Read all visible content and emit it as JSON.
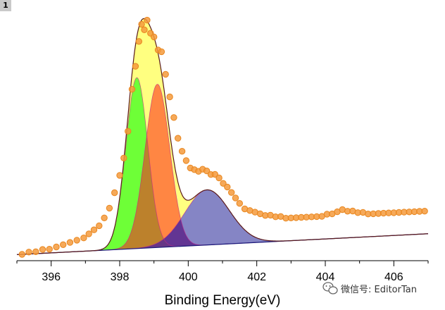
{
  "layer_badge": "1",
  "watermark": "微信号: EditorTan",
  "icons": {
    "watermark": "wechat-icon"
  },
  "chart_data": {
    "type": "area",
    "xlabel": "Binding Energy(eV)",
    "ylabel": "",
    "xlim": [
      395,
      407
    ],
    "ylim": [
      0,
      1.18
    ],
    "x_ticks": [
      396,
      398,
      400,
      402,
      404,
      406
    ],
    "x_tick_labels": [
      "396",
      "398",
      "400",
      "402",
      "404",
      "406"
    ],
    "baseline": {
      "x": [
        395,
        407
      ],
      "y": [
        -0.02,
        0.09
      ]
    },
    "components": [
      {
        "center": 398.5,
        "height": 0.9,
        "sigma": 0.32,
        "color": "#66ff33",
        "shadow": "#b5812a"
      },
      {
        "center": 399.1,
        "height": 0.86,
        "sigma": 0.36,
        "color": "#ff7f3f",
        "shadow": "#b5812a"
      },
      {
        "center": 400.55,
        "height": 0.29,
        "sigma": 0.65,
        "color": "#7e7ec8",
        "shadow": "#5e2e8e"
      }
    ],
    "envelope_color": "#ffff80",
    "envelope_line_color": "#5a1a1a",
    "data_points": [
      [
        395.15,
        0.0
      ],
      [
        395.35,
        0.01
      ],
      [
        395.55,
        0.01
      ],
      [
        395.75,
        0.02
      ],
      [
        395.95,
        0.02
      ],
      [
        396.15,
        0.03
      ],
      [
        396.35,
        0.04
      ],
      [
        396.55,
        0.05
      ],
      [
        396.75,
        0.06
      ],
      [
        396.95,
        0.07
      ],
      [
        397.1,
        0.09
      ],
      [
        397.25,
        0.11
      ],
      [
        397.4,
        0.13
      ],
      [
        397.55,
        0.17
      ],
      [
        397.7,
        0.22
      ],
      [
        397.85,
        0.3
      ],
      [
        398.0,
        0.39
      ],
      [
        398.12,
        0.48
      ],
      [
        398.24,
        0.62
      ],
      [
        398.36,
        0.84
      ],
      [
        398.46,
        0.96
      ],
      [
        398.56,
        1.09
      ],
      [
        398.64,
        1.18
      ],
      [
        398.72,
        1.15
      ],
      [
        398.8,
        1.2
      ],
      [
        398.9,
        1.13
      ],
      [
        399.0,
        1.11
      ],
      [
        399.12,
        1.04
      ],
      [
        399.22,
        1.03
      ],
      [
        399.34,
        0.91
      ],
      [
        399.46,
        0.79
      ],
      [
        399.58,
        0.68
      ],
      [
        399.7,
        0.57
      ],
      [
        399.82,
        0.5
      ],
      [
        399.94,
        0.45
      ],
      [
        400.06,
        0.41
      ],
      [
        400.18,
        0.4
      ],
      [
        400.3,
        0.39
      ],
      [
        400.42,
        0.4
      ],
      [
        400.54,
        0.39
      ],
      [
        400.66,
        0.37
      ],
      [
        400.78,
        0.37
      ],
      [
        400.9,
        0.35
      ],
      [
        401.02,
        0.32
      ],
      [
        401.14,
        0.3
      ],
      [
        401.26,
        0.27
      ],
      [
        401.38,
        0.24
      ],
      [
        401.5,
        0.21
      ],
      [
        401.65,
        0.18
      ],
      [
        401.8,
        0.17
      ],
      [
        401.95,
        0.16
      ],
      [
        402.1,
        0.15
      ],
      [
        402.25,
        0.14
      ],
      [
        402.4,
        0.14
      ],
      [
        402.55,
        0.13
      ],
      [
        402.7,
        0.13
      ],
      [
        402.85,
        0.12
      ],
      [
        403.0,
        0.12
      ],
      [
        403.15,
        0.12
      ],
      [
        403.3,
        0.12
      ],
      [
        403.45,
        0.12
      ],
      [
        403.6,
        0.12
      ],
      [
        403.75,
        0.12
      ],
      [
        403.9,
        0.12
      ],
      [
        404.05,
        0.13
      ],
      [
        404.2,
        0.13
      ],
      [
        404.35,
        0.14
      ],
      [
        404.5,
        0.15
      ],
      [
        404.65,
        0.14
      ],
      [
        404.8,
        0.14
      ],
      [
        404.95,
        0.13
      ],
      [
        405.1,
        0.13
      ],
      [
        405.25,
        0.12
      ],
      [
        405.4,
        0.12
      ],
      [
        405.55,
        0.12
      ],
      [
        405.7,
        0.12
      ],
      [
        405.85,
        0.12
      ],
      [
        406.0,
        0.12
      ],
      [
        406.15,
        0.12
      ],
      [
        406.3,
        0.12
      ],
      [
        406.45,
        0.12
      ],
      [
        406.6,
        0.12
      ],
      [
        406.75,
        0.12
      ],
      [
        406.9,
        0.12
      ]
    ],
    "point_color": "#f59a3c"
  }
}
